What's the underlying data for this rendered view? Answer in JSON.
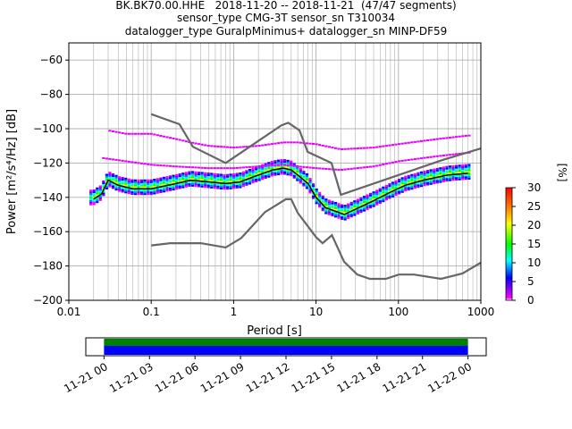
{
  "title": {
    "line1": "BK.BK70.00.HHE   2018-11-20 -- 2018-11-21  (47/47 segments)",
    "line2": "sensor_type CMG-3T sensor_sn T310034",
    "line3": "datalogger_type GuralpMinimus+ datalogger_sn MINP-DF59"
  },
  "chart_data": [
    {
      "type": "heatmap",
      "title": "BK.BK70.00.HHE   2018-11-20 -- 2018-11-21  (47/47 segments)",
      "xlabel": "Period [s]",
      "ylabel": "Power [m²/s⁴/Hz] [dB]",
      "xscale": "log",
      "xlim": [
        0.01,
        1000
      ],
      "ylim": [
        -200,
        -50
      ],
      "x_ticks": [
        "0.01",
        "0.1",
        "1",
        "10",
        "100",
        "1000"
      ],
      "y_ticks": [
        "−200",
        "−180",
        "−160",
        "−140",
        "−120",
        "−100",
        "−80",
        "−60"
      ],
      "grid": true,
      "colorbar": {
        "label": "[%]",
        "range": [
          0,
          30
        ],
        "ticks": [
          "0",
          "5",
          "10",
          "15",
          "20",
          "25",
          "30"
        ],
        "colors": [
          "#ffffff",
          "#ff00ff",
          "#0000ff",
          "#00ffff",
          "#00ff00",
          "#ffff00",
          "#ff8000",
          "#ff0000"
        ]
      },
      "noise_models": {
        "high": {
          "period": [
            0.1,
            0.22,
            0.32,
            0.8,
            3.8,
            4.6,
            6.3,
            7.9,
            15.4,
            20,
            354.8,
            1000
          ],
          "power": [
            -91.5,
            -97.4,
            -110.5,
            -120,
            -98,
            -96.5,
            -101,
            -113.5,
            -120,
            -138.5,
            -118,
            -111.5
          ]
        },
        "low": {
          "period": [
            0.1,
            0.17,
            0.4,
            0.8,
            1.24,
            2.4,
            4.3,
            5,
            6,
            10,
            12,
            15.6,
            21.9,
            31.6,
            45,
            70,
            101,
            154,
            328,
            600,
            1000
          ],
          "power": [
            -168,
            -166.7,
            -166.7,
            -169.2,
            -163.7,
            -148.6,
            -141.1,
            -141.1,
            -149,
            -163.2,
            -166.7,
            -162.1,
            -177.5,
            -185,
            -187.5,
            -187.5,
            -185,
            -185,
            -187.5,
            -184.4,
            -178
          ]
        }
      },
      "mean_curve": {
        "period": [
          0.02,
          0.025,
          0.03,
          0.04,
          0.06,
          0.1,
          0.2,
          0.3,
          0.5,
          0.8,
          1.2,
          2,
          3,
          4,
          5,
          6,
          8,
          10,
          13,
          17,
          22,
          30,
          50,
          80,
          120,
          200,
          400,
          700
        ],
        "power": [
          -141,
          -138,
          -130,
          -133,
          -135,
          -135,
          -132,
          -130,
          -131,
          -132,
          -131,
          -127,
          -124,
          -123,
          -124,
          -127,
          -132,
          -140,
          -146,
          -148,
          -150,
          -147,
          -142,
          -137,
          -133,
          -130,
          -127,
          -126
        ]
      },
      "upper_outlier_band": {
        "period": [
          0.03,
          0.05,
          0.1,
          0.2,
          0.3,
          0.5,
          1,
          2,
          4,
          6,
          10,
          20,
          50,
          100,
          300,
          700
        ],
        "power": [
          -101,
          -103,
          -103,
          -106,
          -108,
          -110,
          -111,
          -110,
          -108,
          -108,
          -109,
          -112,
          -111,
          -109,
          -106,
          -104
        ]
      },
      "second_outlier_band": {
        "period": [
          0.025,
          0.05,
          0.1,
          0.2,
          0.5,
          1,
          2,
          4,
          6,
          10,
          20,
          50,
          100,
          300,
          700
        ],
        "power": [
          -117,
          -119,
          -121,
          -122,
          -123,
          -123,
          -122,
          -121,
          -122,
          -123,
          -124,
          -122,
          -119,
          -116,
          -114
        ]
      }
    },
    {
      "type": "table",
      "title": "",
      "description_timeline": "data coverage",
      "x_ticks": [
        "11-21 00",
        "11-21 03",
        "11-21 06",
        "11-21 09",
        "11-21 12",
        "11-21 15",
        "11-21 18",
        "11-21 21",
        "11-22 00"
      ],
      "xlim_hours": [
        -1.2,
        25.2
      ],
      "coverage_hours": [
        0,
        24
      ]
    }
  ]
}
